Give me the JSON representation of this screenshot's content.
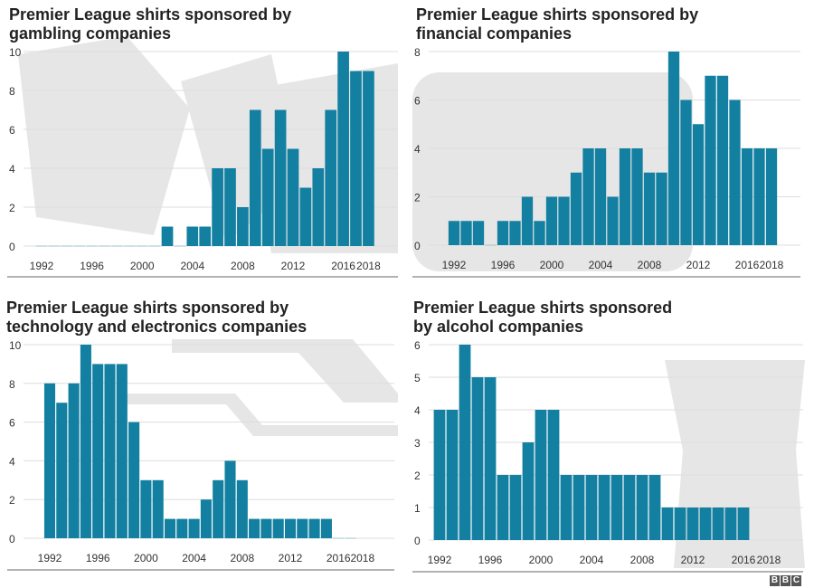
{
  "colors": {
    "bar": "#1380a1",
    "grid": "#dddddd",
    "decor": "#e6e6e6",
    "text": "#333333"
  },
  "branding": {
    "logo": "BBC"
  },
  "chart_data": [
    {
      "type": "bar",
      "title": "Premier League shirts sponsored by gambling companies",
      "background_icon": "dice",
      "x": [
        1992,
        1993,
        1994,
        1995,
        1996,
        1997,
        1998,
        1999,
        2000,
        2001,
        2002,
        2003,
        2004,
        2005,
        2006,
        2007,
        2008,
        2009,
        2010,
        2011,
        2012,
        2013,
        2014,
        2015,
        2016,
        2017,
        2018
      ],
      "values": [
        0,
        0,
        0,
        0,
        0,
        0,
        0,
        0,
        0,
        0,
        1,
        0,
        1,
        1,
        4,
        4,
        2,
        7,
        5,
        7,
        5,
        3,
        4,
        7,
        10,
        9,
        9
      ],
      "ylim": [
        0,
        10
      ],
      "yticks": [
        "0",
        "2",
        "4",
        "6",
        "8",
        "10"
      ],
      "xticks": [
        "1992",
        "1996",
        "2000",
        "2004",
        "2008",
        "2012",
        "2016",
        "2018"
      ],
      "grid": true
    },
    {
      "type": "bar",
      "title": "Premier League shirts sponsored by financial companies",
      "background_icon": "briefcase",
      "x": [
        1992,
        1993,
        1994,
        1995,
        1996,
        1997,
        1998,
        1999,
        2000,
        2001,
        2002,
        2003,
        2004,
        2005,
        2006,
        2007,
        2008,
        2009,
        2010,
        2011,
        2012,
        2013,
        2014,
        2015,
        2016,
        2017,
        2018
      ],
      "values": [
        1,
        1,
        1,
        0,
        1,
        1,
        2,
        1,
        2,
        2,
        3,
        4,
        4,
        2,
        4,
        4,
        3,
        3,
        8,
        6,
        5,
        7,
        7,
        6,
        4,
        4,
        4
      ],
      "ylim": [
        0,
        8
      ],
      "yticks": [
        "0",
        "2",
        "4",
        "6",
        "8"
      ],
      "xticks": [
        "1992",
        "1996",
        "2000",
        "2004",
        "2008",
        "2012",
        "2016",
        "2018"
      ],
      "grid": true
    },
    {
      "type": "bar",
      "title": "Premier League shirts sponsored by technology and electronics companies",
      "background_icon": "circuit",
      "x": [
        1992,
        1993,
        1994,
        1995,
        1996,
        1997,
        1998,
        1999,
        2000,
        2001,
        2002,
        2003,
        2004,
        2005,
        2006,
        2007,
        2008,
        2009,
        2010,
        2011,
        2012,
        2013,
        2014,
        2015,
        2016,
        2017
      ],
      "values": [
        8,
        7,
        8,
        10,
        9,
        9,
        9,
        6,
        3,
        3,
        1,
        1,
        1,
        2,
        3,
        4,
        3,
        1,
        1,
        1,
        1,
        1,
        1,
        1,
        0,
        0
      ],
      "ylim": [
        0,
        10
      ],
      "yticks": [
        "0",
        "2",
        "4",
        "6",
        "8",
        "10"
      ],
      "xticks": [
        "1992",
        "1996",
        "2000",
        "2004",
        "2008",
        "2012",
        "2016",
        "2018"
      ],
      "grid": true
    },
    {
      "type": "bar",
      "title": "Premier League shirts sponsored by alcohol companies",
      "background_icon": "pint-glass",
      "x": [
        1992,
        1993,
        1994,
        1995,
        1996,
        1997,
        1998,
        1999,
        2000,
        2001,
        2002,
        2003,
        2004,
        2005,
        2006,
        2007,
        2008,
        2009,
        2010,
        2011,
        2012,
        2013,
        2014,
        2015,
        2016
      ],
      "values": [
        4,
        4,
        6,
        5,
        5,
        2,
        2,
        3,
        4,
        4,
        2,
        2,
        2,
        2,
        2,
        2,
        2,
        2,
        1,
        1,
        1,
        1,
        1,
        1,
        1
      ],
      "ylim": [
        0,
        6
      ],
      "yticks": [
        "0",
        "1",
        "2",
        "3",
        "4",
        "5",
        "6"
      ],
      "xticks": [
        "1992",
        "1996",
        "2000",
        "2004",
        "2008",
        "2012",
        "2016",
        "2018"
      ],
      "grid": true
    }
  ],
  "titles": [
    [
      "Premier League shirts sponsored by",
      "gambling companies"
    ],
    [
      "Premier League shirts sponsored by",
      "financial companies"
    ],
    [
      "Premier League shirts sponsored by",
      "technology and electronics companies"
    ],
    [
      "Premier League shirts sponsored",
      "by alcohol companies"
    ]
  ]
}
